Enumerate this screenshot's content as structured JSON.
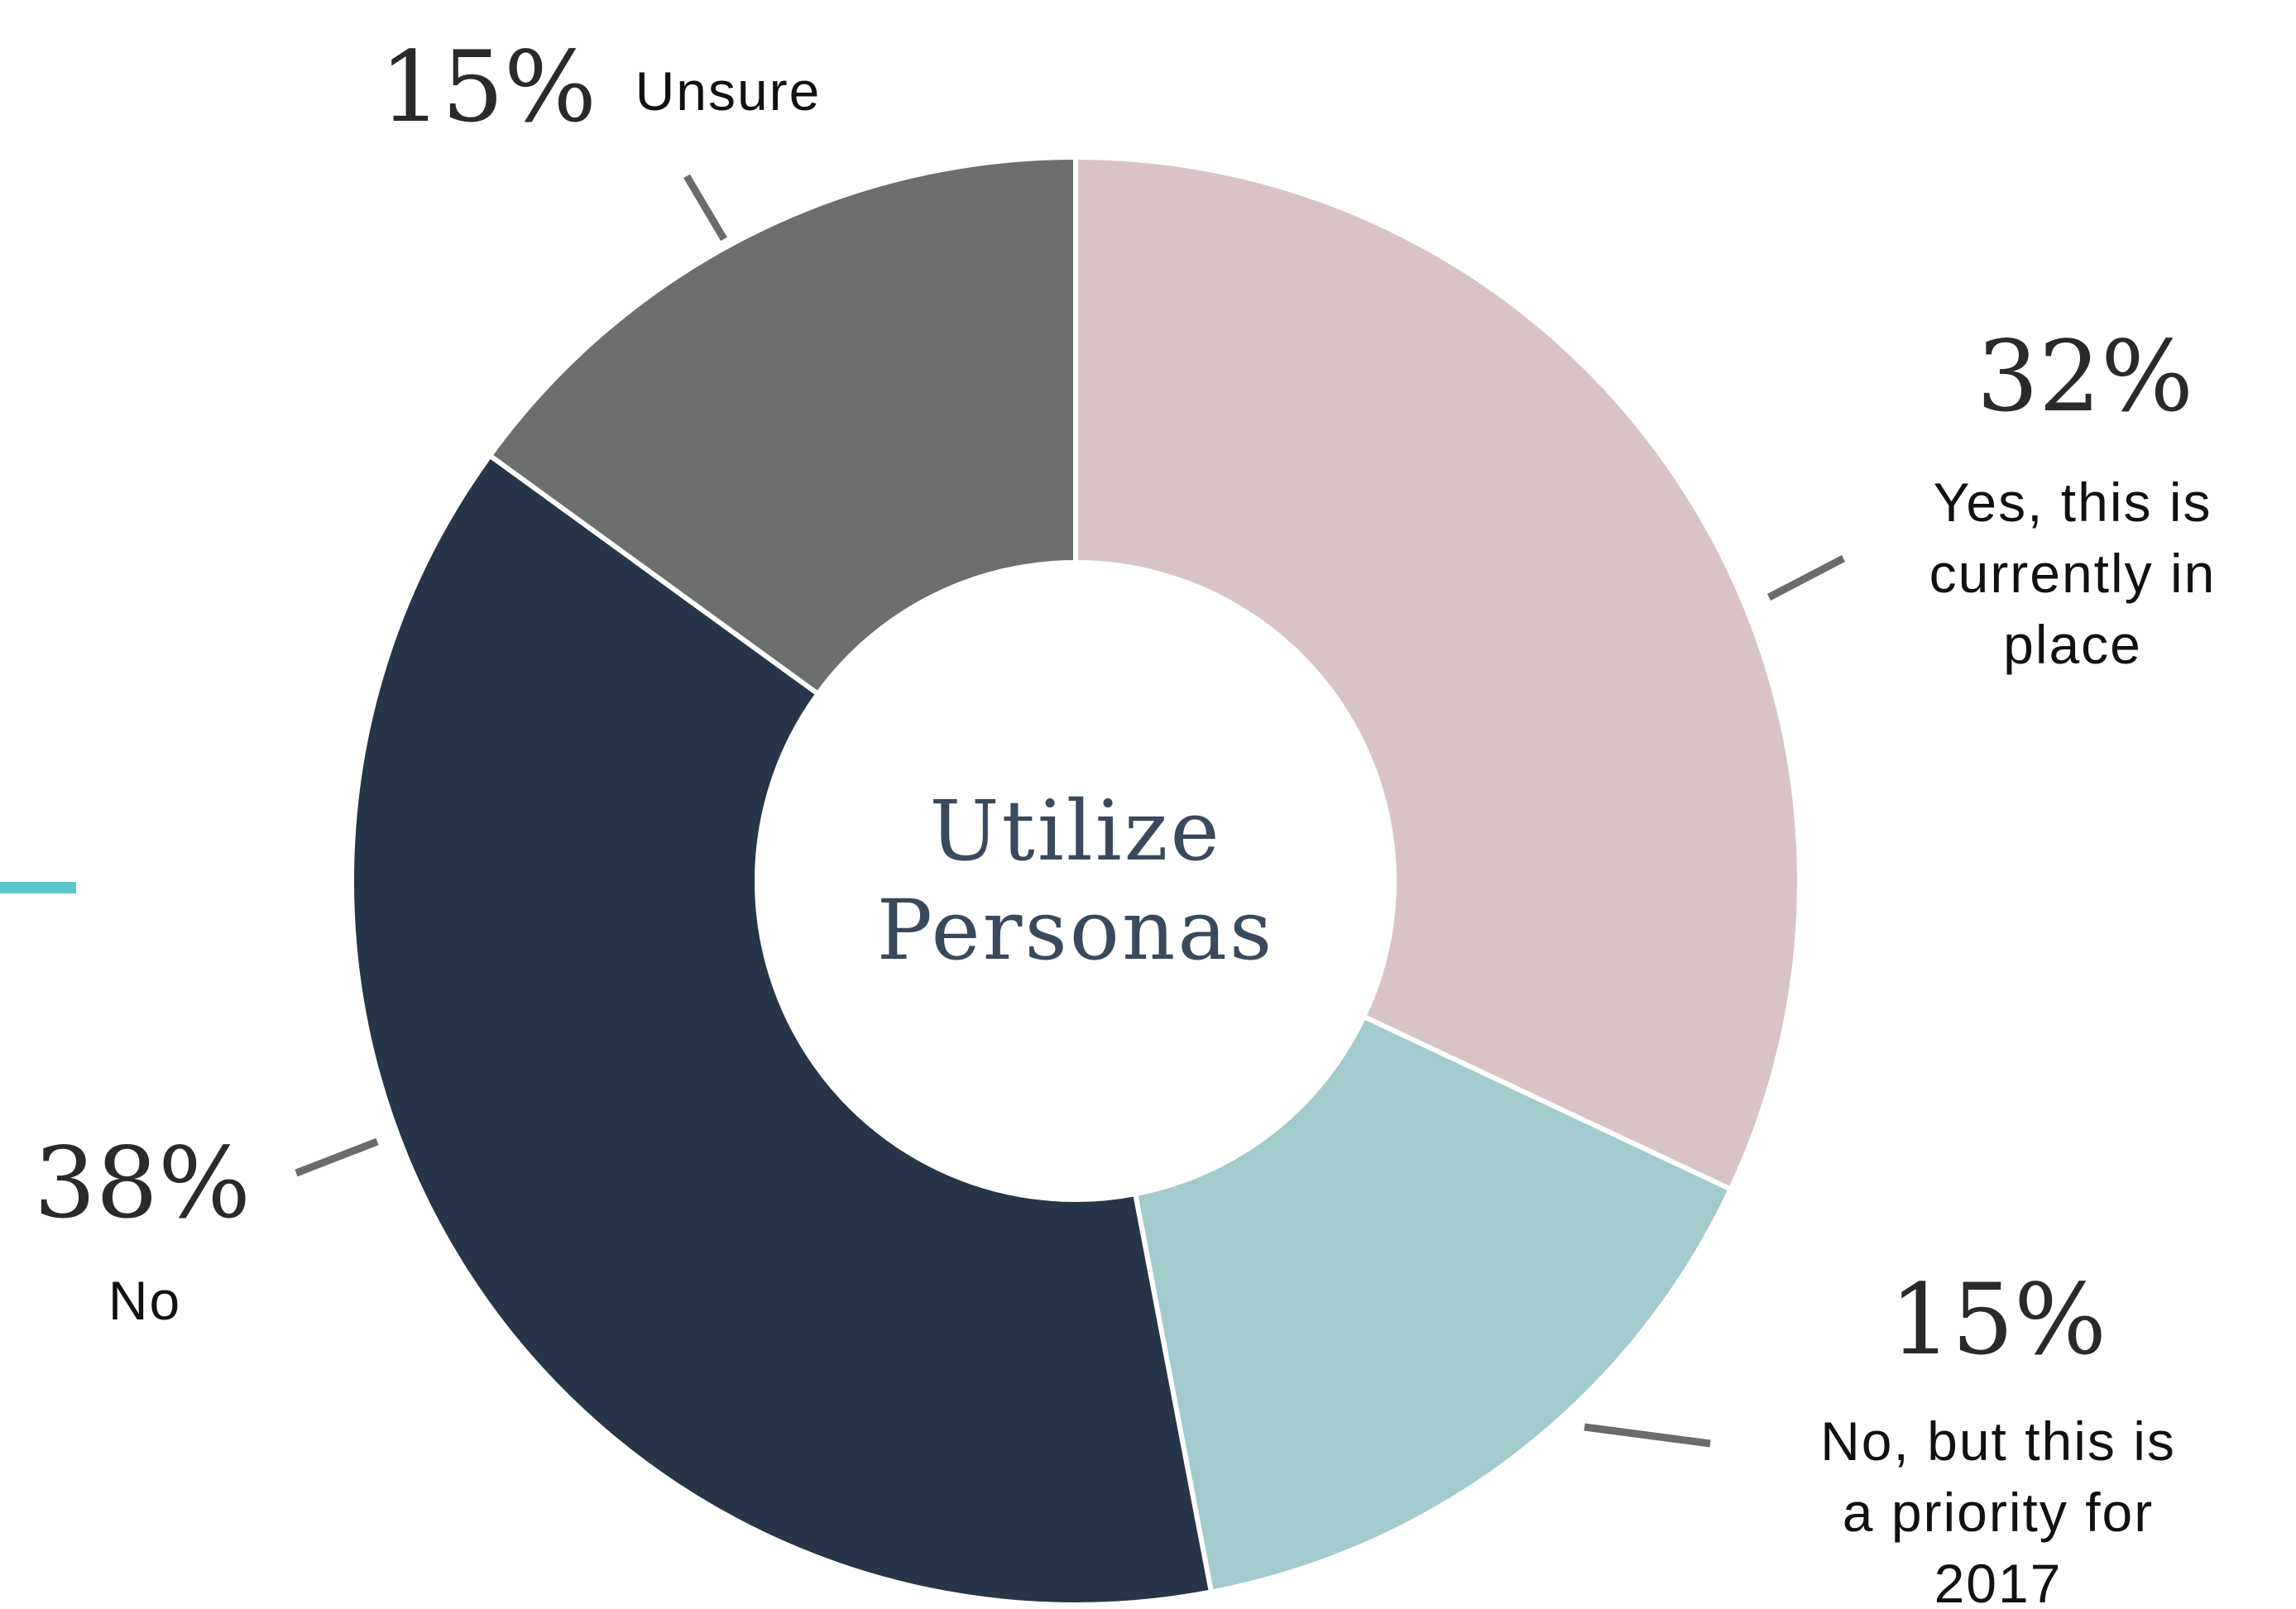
{
  "chart_data": {
    "type": "donut",
    "title": "Utilize Personas",
    "categories": [
      "Yes, this is currently in place",
      "No, but this is a priority for 2017",
      "No",
      "Unsure"
    ],
    "values": [
      32,
      15,
      38,
      15
    ],
    "value_labels": [
      "32%",
      "15%",
      "38%",
      "15%"
    ],
    "colors": [
      "#d8c4c7",
      "#a3cbcd",
      "#263547",
      "#6d6e6e"
    ]
  }
}
